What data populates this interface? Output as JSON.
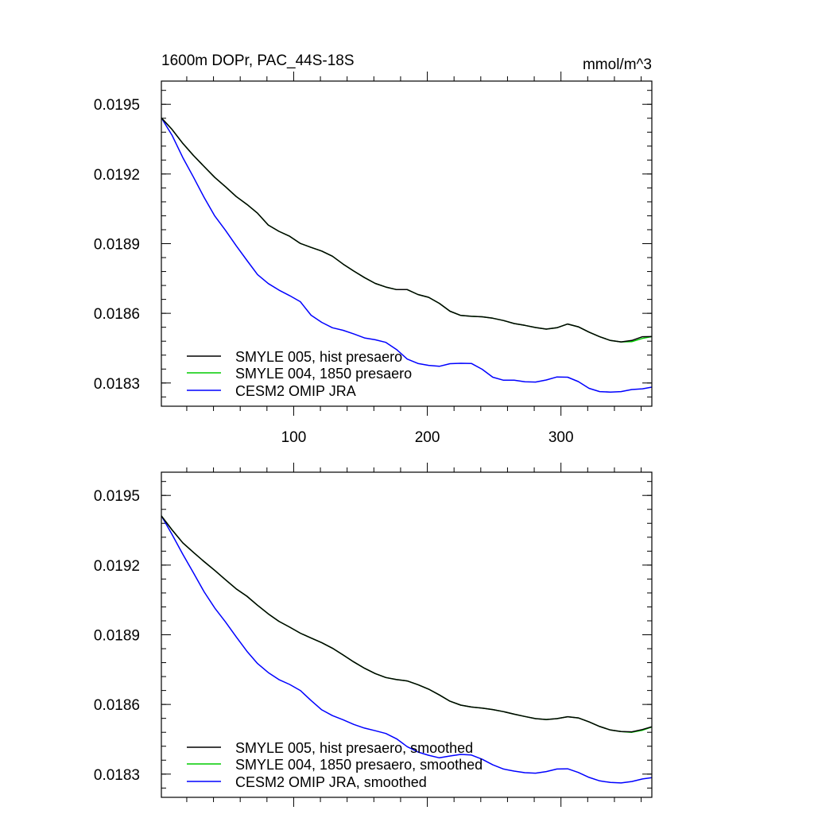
{
  "figure": {
    "title_left": "1600m DOPr, PAC_44S-18S",
    "title_right": "mmol/m^3"
  },
  "chart_data": [
    {
      "type": "line",
      "title": "1600m DOPr, PAC_44S-18S",
      "units": "mmol/m^3",
      "xlim": [
        1,
        368
      ],
      "ylim": [
        0.0182,
        0.0196
      ],
      "x_ticks": [
        100,
        200,
        300
      ],
      "x_tick_labels": [
        "100",
        "200",
        "300"
      ],
      "y_ticks": [
        0.0183,
        0.0186,
        0.0189,
        0.0192,
        0.0195
      ],
      "y_tick_labels": [
        "0.0183",
        "0.0186",
        "0.0189",
        "0.0192",
        "0.0195"
      ],
      "grid": false,
      "legend_position": "bottom-left",
      "x_step": 8,
      "series": [
        {
          "name": "SMYLE 005, hist presaero",
          "color": "#000000",
          "values": [
            0.019442,
            0.019392,
            0.019332,
            0.01928,
            0.019232,
            0.019185,
            0.019145,
            0.019103,
            0.019069,
            0.019031,
            0.01898,
            0.018953,
            0.018932,
            0.018901,
            0.018884,
            0.018868,
            0.018846,
            0.018812,
            0.018782,
            0.018754,
            0.018729,
            0.018713,
            0.018702,
            0.018702,
            0.018681,
            0.018669,
            0.018643,
            0.018609,
            0.018591,
            0.018587,
            0.018585,
            0.018579,
            0.018569,
            0.018556,
            0.018548,
            0.018539,
            0.018532,
            0.018538,
            0.018554,
            0.018542,
            0.018519,
            0.018499,
            0.018483,
            0.018477,
            0.018483,
            0.018499,
            0.0185
          ]
        },
        {
          "name": "SMYLE 004, 1850 presaero",
          "color": "#00cc00",
          "values": [
            0.019442,
            0.019392,
            0.019332,
            0.01928,
            0.019232,
            0.019185,
            0.019145,
            0.019103,
            0.019069,
            0.019031,
            0.01898,
            0.018953,
            0.018932,
            0.018901,
            0.018884,
            0.018868,
            0.018846,
            0.018812,
            0.018782,
            0.018754,
            0.018729,
            0.018713,
            0.018702,
            0.018702,
            0.018681,
            0.018669,
            0.018643,
            0.018609,
            0.018591,
            0.018587,
            0.018585,
            0.018579,
            0.018569,
            0.018556,
            0.018548,
            0.018539,
            0.018532,
            0.018538,
            0.018554,
            0.018542,
            0.018519,
            0.018499,
            0.018483,
            0.018477,
            0.018478,
            0.018492,
            0.0185
          ]
        },
        {
          "name": "CESM2 OMIP JRA",
          "color": "#0000ff",
          "values": [
            0.019442,
            0.019367,
            0.019271,
            0.019187,
            0.019099,
            0.019019,
            0.018957,
            0.018891,
            0.018828,
            0.018767,
            0.018728,
            0.0187,
            0.018676,
            0.01865,
            0.018592,
            0.018561,
            0.018538,
            0.018527,
            0.018511,
            0.018494,
            0.018486,
            0.018475,
            0.018444,
            0.018403,
            0.018384,
            0.018376,
            0.018372,
            0.018383,
            0.018385,
            0.018384,
            0.018359,
            0.018325,
            0.018312,
            0.018312,
            0.018305,
            0.018304,
            0.018313,
            0.018326,
            0.018325,
            0.018306,
            0.018277,
            0.018263,
            0.018261,
            0.018263,
            0.018272,
            0.018275,
            0.018282
          ]
        }
      ]
    },
    {
      "type": "line",
      "xlim": [
        1,
        368
      ],
      "ylim": [
        0.0182,
        0.0196
      ],
      "x_ticks": [
        100,
        200,
        300
      ],
      "y_ticks": [
        0.0183,
        0.0186,
        0.0189,
        0.0192,
        0.0195
      ],
      "y_tick_labels": [
        "0.0183",
        "0.0186",
        "0.0189",
        "0.0192",
        "0.0195"
      ],
      "grid": false,
      "legend_position": "bottom-left",
      "x_step": 8,
      "series": [
        {
          "name": "SMYLE 005, hist presaero, smoothed",
          "color": "#000000",
          "values": [
            0.019412,
            0.019352,
            0.019296,
            0.019255,
            0.019215,
            0.019177,
            0.019137,
            0.019098,
            0.019066,
            0.019027,
            0.01899,
            0.018958,
            0.018933,
            0.018907,
            0.018886,
            0.018866,
            0.018842,
            0.018813,
            0.018783,
            0.018756,
            0.018733,
            0.018716,
            0.018707,
            0.018701,
            0.018685,
            0.018666,
            0.018641,
            0.018614,
            0.018597,
            0.018589,
            0.018584,
            0.018578,
            0.018569,
            0.018558,
            0.018548,
            0.018539,
            0.018535,
            0.018539,
            0.018547,
            0.018542,
            0.018525,
            0.018505,
            0.01849,
            0.018483,
            0.018482,
            0.018492,
            0.018504
          ]
        },
        {
          "name": "SMYLE 004, 1850 presaero, smoothed",
          "color": "#00cc00",
          "values": [
            0.019412,
            0.019352,
            0.019296,
            0.019255,
            0.019215,
            0.019177,
            0.019137,
            0.019098,
            0.019066,
            0.019027,
            0.01899,
            0.018958,
            0.018933,
            0.018907,
            0.018886,
            0.018866,
            0.018842,
            0.018813,
            0.018783,
            0.018756,
            0.018733,
            0.018716,
            0.018707,
            0.018701,
            0.018685,
            0.018666,
            0.018641,
            0.018614,
            0.018597,
            0.018589,
            0.018584,
            0.018578,
            0.018569,
            0.018558,
            0.018548,
            0.018539,
            0.018535,
            0.018539,
            0.018547,
            0.018542,
            0.018525,
            0.018505,
            0.01849,
            0.018483,
            0.01848,
            0.018489,
            0.018503
          ]
        },
        {
          "name": "CESM2 OMIP JRA, smoothed",
          "color": "#0000ff",
          "values": [
            0.019412,
            0.019332,
            0.019247,
            0.019167,
            0.019085,
            0.019015,
            0.018955,
            0.018891,
            0.018829,
            0.018776,
            0.018737,
            0.018707,
            0.018686,
            0.01866,
            0.018617,
            0.018577,
            0.018552,
            0.018534,
            0.018514,
            0.018498,
            0.018487,
            0.018475,
            0.018452,
            0.018418,
            0.018395,
            0.018381,
            0.01837,
            0.018378,
            0.018385,
            0.018382,
            0.018364,
            0.01834,
            0.018322,
            0.018313,
            0.018306,
            0.018304,
            0.018311,
            0.018322,
            0.018323,
            0.018307,
            0.018286,
            0.018271,
            0.018264,
            0.018262,
            0.018268,
            0.018279,
            0.018285
          ]
        }
      ]
    }
  ]
}
